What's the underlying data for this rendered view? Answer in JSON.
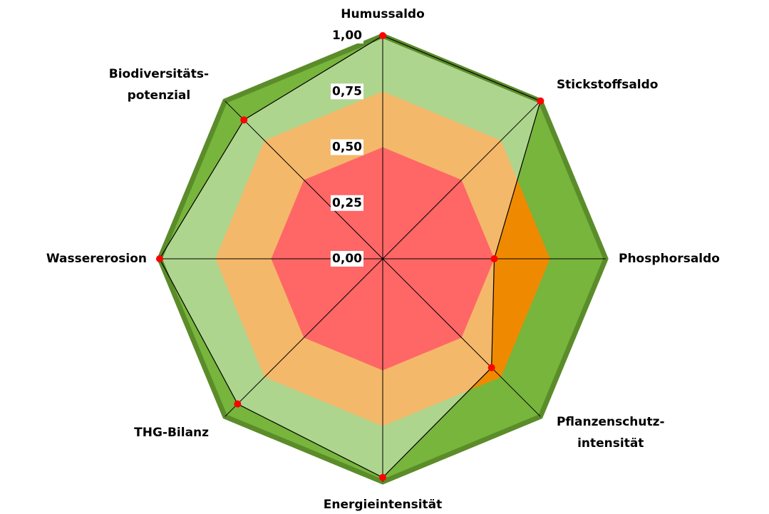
{
  "chart_data": {
    "type": "radar",
    "categories": [
      "Humussaldo",
      "Stickstoffsaldo",
      "Phosphorsaldo",
      "Pflanzenschutz-\nintensität",
      "Energieintensität",
      "THG-Bilanz",
      "Wassererosion",
      "Biodiversitäts-\npotenzial"
    ],
    "values": [
      1.0,
      1.0,
      0.5,
      0.69,
      0.98,
      0.92,
      1.0,
      0.88
    ],
    "color": "#000000",
    "marker_color": "#ff0000",
    "ylim": [
      0,
      1
    ],
    "yticks": [
      {
        "value": 0,
        "label": "0,00"
      },
      {
        "value": 0.25,
        "label": "0,25"
      },
      {
        "value": 0.5,
        "label": "0,50"
      },
      {
        "value": 0.75,
        "label": "0,75"
      },
      {
        "value": 1,
        "label": "1,00"
      }
    ],
    "bands": [
      {
        "from": 0.75,
        "to": 1,
        "color": "#aed58e",
        "dark_color": "#77b53c"
      },
      {
        "from": 0.5,
        "to": 0.75,
        "color": "#f4b86a",
        "dark_color": "#ef8a00"
      },
      {
        "from": 0,
        "to": 0.5,
        "color": "#ff6666",
        "dark_color": "#d94040"
      }
    ],
    "border_color": "#5b8c2a"
  }
}
